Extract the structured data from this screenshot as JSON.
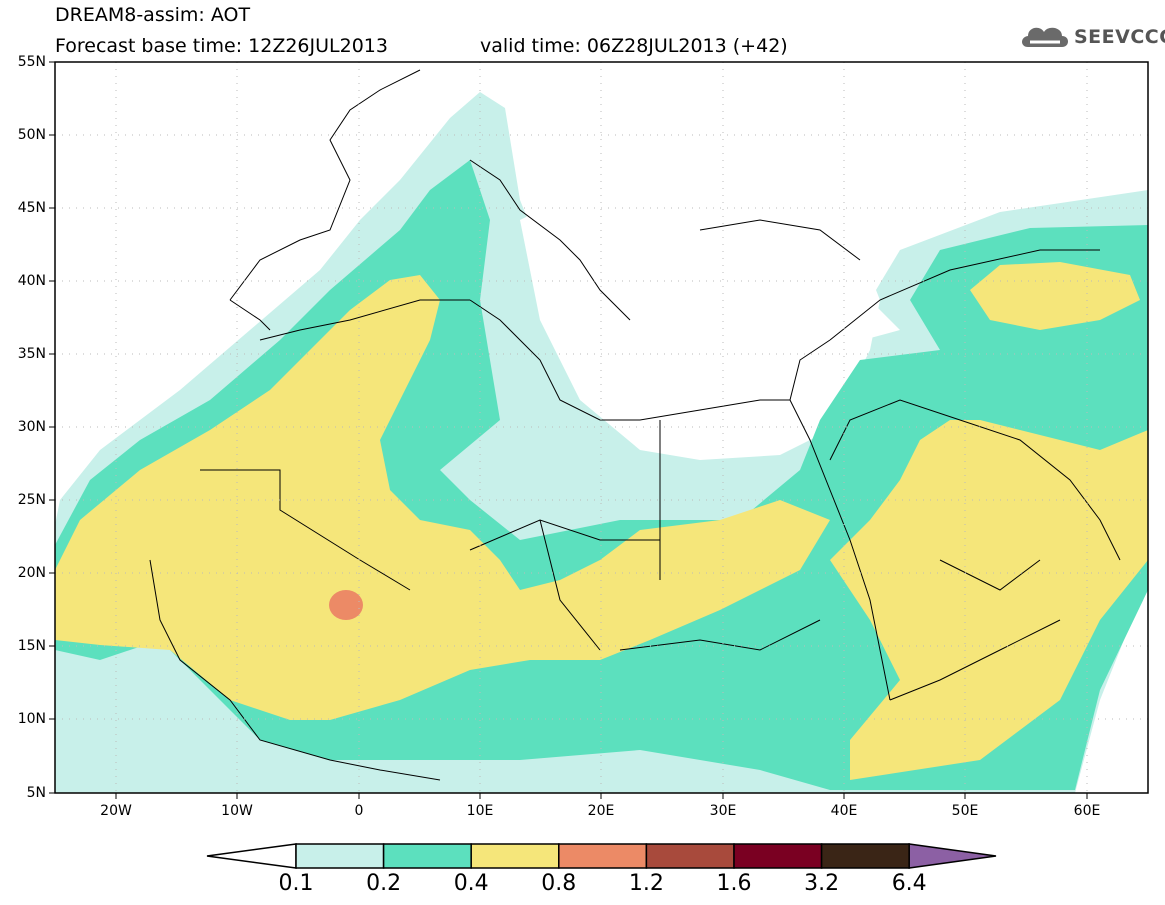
{
  "header": {
    "title": "DREAM8-assim: AOT",
    "base_time": "Forecast base time: 12Z26JUL2013",
    "valid_time": "valid time: 06Z28JUL2013 (+42)",
    "logo_text": "SEEVCCC"
  },
  "axes": {
    "lat_ticks": [
      "55N",
      "50N",
      "45N",
      "40N",
      "35N",
      "30N",
      "25N",
      "20N",
      "15N",
      "10N",
      "5N"
    ],
    "lon_ticks": [
      "20W",
      "10W",
      "0",
      "10E",
      "20E",
      "30E",
      "40E",
      "50E",
      "60E"
    ]
  },
  "colorbar": {
    "labels": [
      "0.1",
      "0.2",
      "0.4",
      "0.8",
      "1.2",
      "1.6",
      "3.2",
      "6.4"
    ],
    "colors": [
      "#ffffff",
      "#c8f0ea",
      "#5ce0be",
      "#f5e67a",
      "#ec8a66",
      "#a84a3c",
      "#7a0022",
      "#3a2516",
      "#8c60a4"
    ]
  },
  "colors": {
    "aot_0_1": "#c8f0ea",
    "aot_0_2": "#5ce0be",
    "aot_0_4": "#f5e67a",
    "aot_0_8": "#ec8a66"
  }
}
